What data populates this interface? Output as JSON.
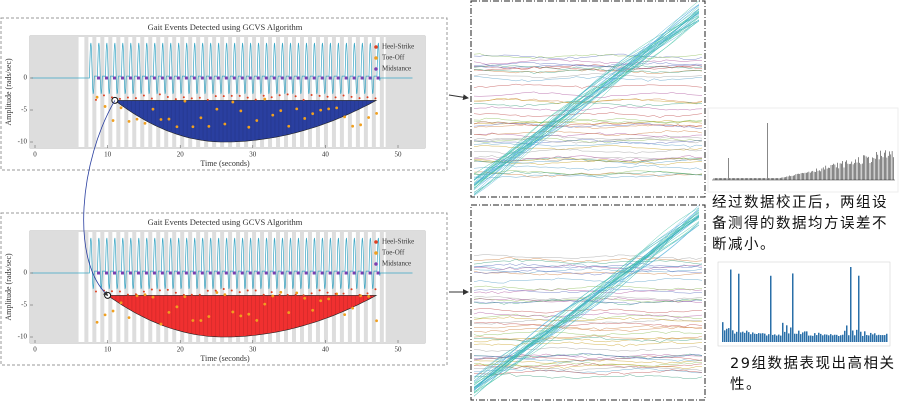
{
  "panels": [
    {
      "title": "Gait Events Detected using GCVS Algorithm",
      "y_label": "Amplitude (rads/sec)",
      "x_label": "Time (seconds)",
      "yticks": [
        0,
        -5,
        -10
      ],
      "xticks": [
        0,
        10,
        20,
        30,
        40,
        50
      ],
      "legend": [
        "Heel-Strike",
        "Toe-Off",
        "Midstance"
      ]
    },
    {
      "title": "Gait Events Detected using GCVS Algorithm",
      "y_label": "Amplitude (rads/sec)",
      "x_label": "Time (seconds)",
      "yticks": [
        0,
        -5,
        -10
      ],
      "xticks": [
        0,
        10,
        20,
        30,
        40,
        50
      ],
      "legend": [
        "Heel-Strike",
        "Toe-Off",
        "Midstance"
      ]
    }
  ],
  "captions": [
    "经过数据校正后，两组设备测得的数据均方误差不断减小。",
    "29组数据表现出高相关性。"
  ]
}
